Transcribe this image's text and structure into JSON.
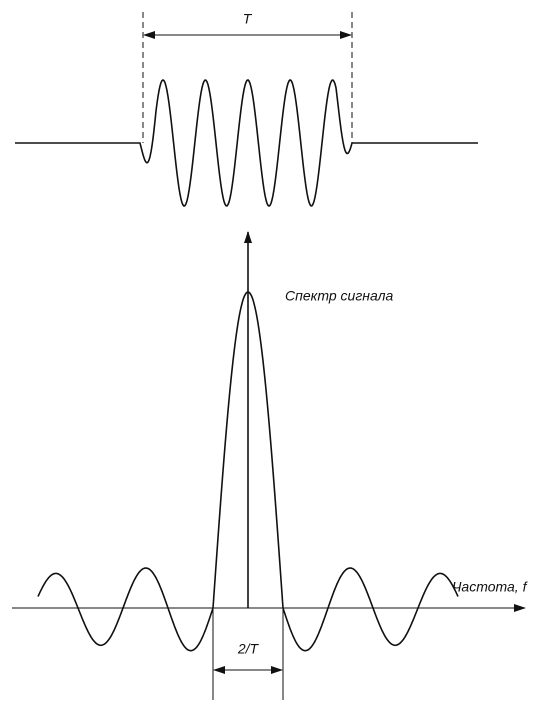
{
  "labels": {
    "duration": "T",
    "spectrum": "Спектр сигнала",
    "frequency": "Частота, f",
    "bandwidth": "2/T"
  }
}
